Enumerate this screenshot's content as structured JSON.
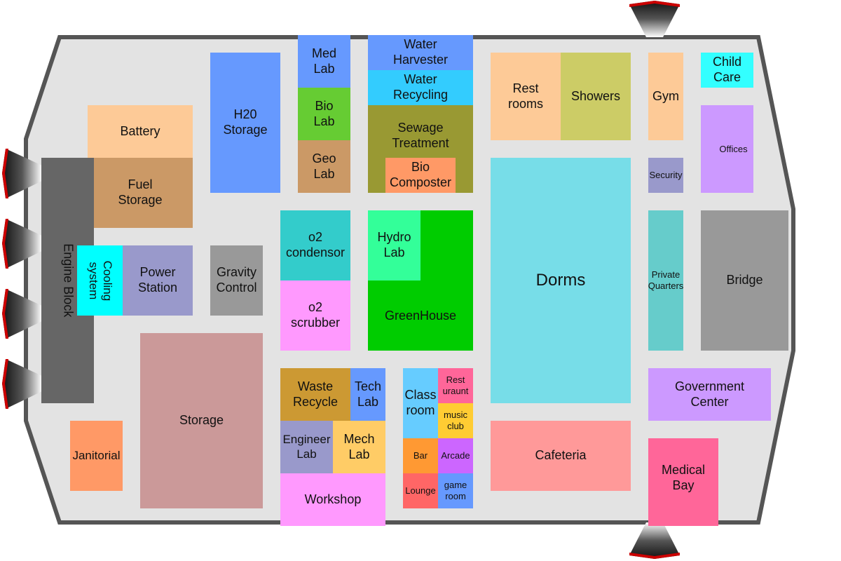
{
  "colors": {
    "hull_fill": "#e3e3e3",
    "hull_stroke": "#555555",
    "thruster_dark": "#2a2a2a",
    "thruster_red": "#cc0000"
  },
  "rooms": {
    "battery": {
      "label": "Battery",
      "color": "#fdca97"
    },
    "fuel_storage": {
      "label": "Fuel\nStorage",
      "color": "#cb9966"
    },
    "engine_block": {
      "label": "Engine Block",
      "color": "#666666"
    },
    "cooling_system": {
      "label": "Cooling\nsystem",
      "color": "#00ffff"
    },
    "power_station": {
      "label": "Power\nStation",
      "color": "#9999cb"
    },
    "gravity_control": {
      "label": "Gravity\nControl",
      "color": "#999999"
    },
    "h20_storage": {
      "label": "H20\nStorage",
      "color": "#6699fe"
    },
    "med_lab": {
      "label": "Med\nLab",
      "color": "#6699fe"
    },
    "bio_lab": {
      "label": "Bio\nLab",
      "color": "#66cc33"
    },
    "geo_lab": {
      "label": "Geo\nLab",
      "color": "#cb9966"
    },
    "water_harvester": {
      "label": "Water\nHarvester",
      "color": "#6699fe"
    },
    "water_recycling": {
      "label": "Water\nRecycling",
      "color": "#33ccfe"
    },
    "sewage_treatment": {
      "label": "Sewage\nTreatment",
      "color": "#999933"
    },
    "bio_composter": {
      "label": "Bio\nComposter",
      "color": "#ff9966"
    },
    "o2_condensor": {
      "label": "o2\ncondensor",
      "color": "#33cccb"
    },
    "o2_scrubber": {
      "label": "o2\nscrubber",
      "color": "#ff99fe"
    },
    "greenhouse": {
      "label": "GreenHouse",
      "color": "#00cc00"
    },
    "hydro_lab": {
      "label": "Hydro\nLab",
      "color": "#33ff99"
    },
    "storage": {
      "label": "Storage",
      "color": "#cb9999"
    },
    "janitorial": {
      "label": "Janitorial",
      "color": "#ff9966"
    },
    "waste_recycle": {
      "label": "Waste\nRecycle",
      "color": "#cc9933"
    },
    "tech_lab": {
      "label": "Tech\nLab",
      "color": "#6699fe"
    },
    "engineer_lab": {
      "label": "Engineer\nLab",
      "color": "#9999cb"
    },
    "mech_lab": {
      "label": "Mech\nLab",
      "color": "#ffcc66"
    },
    "workshop": {
      "label": "Workshop",
      "color": "#ff99fe"
    },
    "class_room": {
      "label": "Class\nroom",
      "color": "#66ccff"
    },
    "restaurant": {
      "label": "Rest\nuraunt",
      "color": "#ff6699"
    },
    "music_club": {
      "label": "music\nclub",
      "color": "#ffcc33"
    },
    "bar": {
      "label": "Bar",
      "color": "#ff9933"
    },
    "arcade": {
      "label": "Arcade",
      "color": "#cc66ff"
    },
    "lounge": {
      "label": "Lounge",
      "color": "#ff6666"
    },
    "game_room": {
      "label": "game\nroom",
      "color": "#6699fe"
    },
    "restrooms": {
      "label": "Rest\nrooms",
      "color": "#fdca97"
    },
    "showers": {
      "label": "Showers",
      "color": "#cccc66"
    },
    "dorms": {
      "label": "Dorms",
      "color": "#77dde8"
    },
    "cafeteria": {
      "label": "Cafeteria",
      "color": "#ff9999"
    },
    "gym": {
      "label": "Gym",
      "color": "#fdca97"
    },
    "child_care": {
      "label": "Child\nCare",
      "color": "#33ffff"
    },
    "offices": {
      "label": "Offices",
      "color": "#cc99ff"
    },
    "security": {
      "label": "Security",
      "color": "#9999cb"
    },
    "private_quarters": {
      "label": "Private\nQuarters",
      "color": "#66cccb"
    },
    "bridge": {
      "label": "Bridge",
      "color": "#999999"
    },
    "government_center": {
      "label": "Government\nCenter",
      "color": "#cc99ff"
    },
    "medical_bay": {
      "label": "Medical\nBay",
      "color": "#ff6699"
    }
  }
}
